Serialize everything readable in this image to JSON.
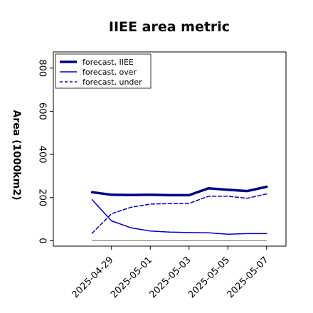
{
  "chart_data": {
    "type": "line",
    "title": "IIEE area metric",
    "ylabel": "Area (1000km2)",
    "xlabel": "",
    "ylim": [
      -25,
      875
    ],
    "yticks": [
      0,
      200,
      400,
      600,
      800
    ],
    "xlim": [
      "2025-04-26",
      "2025-05-08"
    ],
    "xticks": [
      "2025-04-29",
      "2025-05-01",
      "2025-05-03",
      "2025-05-05",
      "2025-05-07"
    ],
    "highlight_tick": "2025-04-29",
    "highlight_color": "#228B22",
    "grid": false,
    "legend_position": "upper-left",
    "x": [
      "2025-04-28",
      "2025-04-29",
      "2025-04-30",
      "2025-05-01",
      "2025-05-02",
      "2025-05-03",
      "2025-05-04",
      "2025-05-05",
      "2025-05-06",
      "2025-05-07"
    ],
    "series": [
      {
        "name": "forecast, IIEE",
        "color": "#00008B",
        "style": "solid",
        "width": 3.5,
        "values": [
          225,
          213,
          212,
          213,
          211,
          211,
          243,
          236,
          230,
          250
        ]
      },
      {
        "name": "forecast, over",
        "color": "#0000CD",
        "style": "solid",
        "width": 1.5,
        "values": [
          190,
          92,
          60,
          45,
          40,
          38,
          37,
          30,
          33,
          33
        ]
      },
      {
        "name": "forecast, under",
        "color": "#0000CD",
        "style": "dashed",
        "width": 1.5,
        "values": [
          35,
          125,
          155,
          170,
          172,
          173,
          206,
          206,
          197,
          217
        ]
      }
    ],
    "baseline": {
      "y": 0,
      "color": "#808080",
      "from": "2025-04-28",
      "to": "2025-05-07"
    }
  }
}
